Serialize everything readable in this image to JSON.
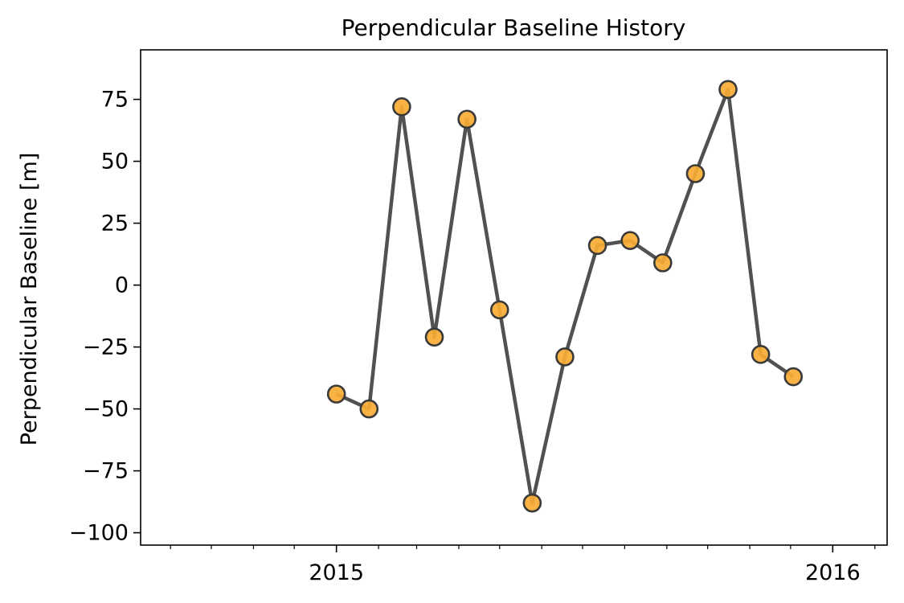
{
  "chart_data": {
    "type": "line",
    "title": "Perpendicular Baseline History",
    "xlabel": "",
    "ylabel": "Perpendicular Baseline [m]",
    "x_type": "date",
    "xlim": [
      "2014-08-10",
      "2016-02-10"
    ],
    "ylim": [
      -105,
      95
    ],
    "x_ticks": [
      {
        "value": "2015-01-01",
        "label": "2015"
      },
      {
        "value": "2016-01-01",
        "label": "2016"
      }
    ],
    "x_minor_ticks": [
      "2014-09-01",
      "2014-10-01",
      "2014-11-01",
      "2014-12-01",
      "2015-02-01",
      "2015-03-01",
      "2015-04-01",
      "2015-05-01",
      "2015-06-01",
      "2015-07-01",
      "2015-08-01",
      "2015-09-01",
      "2015-10-01",
      "2015-11-01",
      "2015-12-01",
      "2016-02-01"
    ],
    "y_ticks": [
      75,
      50,
      25,
      0,
      -25,
      -50,
      -75,
      -100
    ],
    "y_tick_labels": [
      "75",
      "50",
      "25",
      "0",
      "−25",
      "−50",
      "−75",
      "−100"
    ],
    "grid": false,
    "legend": "none",
    "series": [
      {
        "x": [
          "2015-01-01",
          "2015-01-25",
          "2015-02-18",
          "2015-03-14",
          "2015-04-07",
          "2015-05-01",
          "2015-05-25",
          "2015-06-18",
          "2015-07-12",
          "2015-08-05",
          "2015-08-29",
          "2015-09-22",
          "2015-10-16",
          "2015-11-09",
          "2015-12-03"
        ],
        "y": [
          -44,
          -50,
          72,
          -21,
          67,
          -10,
          -88,
          -29,
          16,
          18,
          9,
          45,
          79,
          -28,
          -37
        ],
        "line_color": "#4b4b4b",
        "marker_fill": "#f9ac34",
        "marker_edge": "#3a3a3a"
      }
    ]
  }
}
